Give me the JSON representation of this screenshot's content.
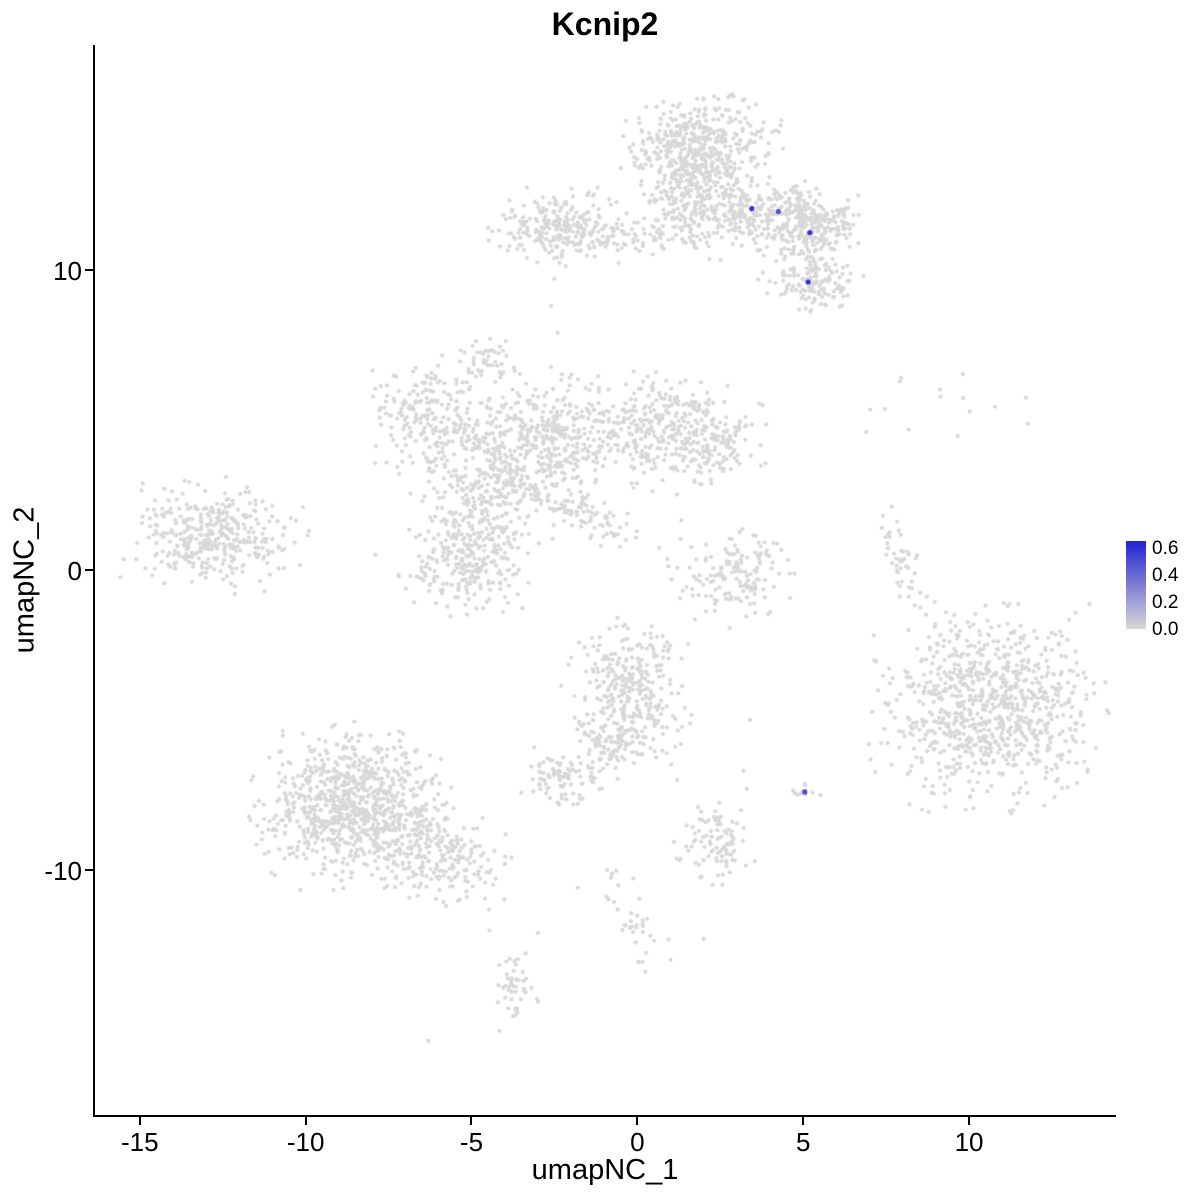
{
  "title": "Kcnip2",
  "chart_data": {
    "type": "scatter",
    "title": "Kcnip2",
    "xlabel": "umapNC_1",
    "ylabel": "umapNC_2",
    "x_ticks": [
      -15,
      -10,
      -5,
      0,
      5,
      10
    ],
    "y_ticks": [
      -10,
      0,
      10
    ],
    "x_range": [
      -16.35,
      14.4
    ],
    "y_range": [
      -18.17,
      17.5
    ],
    "grid": false,
    "point_color": "#D8D8D8",
    "highlight_color": "#2323D3",
    "legend": {
      "position": "right",
      "tick_labels": [
        "0.6",
        "0.4",
        "0.2",
        "0.0"
      ],
      "tick_values": [
        0.6,
        0.4,
        0.2,
        0.0
      ],
      "value_max": 0.65,
      "color_high": "#2323D3",
      "color_low": "#D8D8D8"
    },
    "clusters": [
      {
        "name": "top-head",
        "cx": 1.9,
        "cy": 14.1,
        "sx": 1.05,
        "sy": 0.8,
        "rot": 0,
        "n": 460
      },
      {
        "name": "top-neck",
        "cx": 1.5,
        "cy": 12.4,
        "sx": 0.6,
        "sy": 0.9,
        "rot": 8,
        "n": 190
      },
      {
        "name": "top-right-arm",
        "cx": 3.8,
        "cy": 11.8,
        "sx": 1.3,
        "sy": 0.6,
        "rot": -10,
        "n": 320
      },
      {
        "name": "top-right-dense",
        "cx": 5.3,
        "cy": 11.6,
        "sx": 0.6,
        "sy": 0.5,
        "rot": 0,
        "n": 160
      },
      {
        "name": "top-left-blob",
        "cx": -2.3,
        "cy": 11.4,
        "sx": 0.9,
        "sy": 0.55,
        "rot": 0,
        "n": 250
      },
      {
        "name": "top-left-strip",
        "cx": -0.4,
        "cy": 11.1,
        "sx": 1.0,
        "sy": 0.28,
        "rot": 0,
        "n": 70
      },
      {
        "name": "upper-right-small",
        "cx": 5.3,
        "cy": 9.6,
        "sx": 0.75,
        "sy": 0.5,
        "rot": -15,
        "n": 140
      },
      {
        "name": "mid-left-arm",
        "cx": -6.2,
        "cy": 5.1,
        "sx": 0.85,
        "sy": 0.85,
        "rot": 0,
        "n": 210
      },
      {
        "name": "mid-central",
        "cx": -4.4,
        "cy": 3.0,
        "sx": 1.0,
        "sy": 1.1,
        "rot": 15,
        "n": 330
      },
      {
        "name": "mid-core",
        "cx": -2.6,
        "cy": 4.4,
        "sx": 1.0,
        "sy": 0.95,
        "rot": 0,
        "n": 310
      },
      {
        "name": "mid-right-lobe",
        "cx": 0.7,
        "cy": 4.6,
        "sx": 1.35,
        "sy": 0.85,
        "rot": 0,
        "n": 340
      },
      {
        "name": "mid-right-tip",
        "cx": 2.3,
        "cy": 4.1,
        "sx": 0.6,
        "sy": 0.6,
        "rot": 0,
        "n": 90
      },
      {
        "name": "mid-streak",
        "cx": -1.6,
        "cy": 1.9,
        "sx": 1.1,
        "sy": 0.3,
        "rot": -28,
        "n": 90
      },
      {
        "name": "mid-top-knob",
        "cx": -4.6,
        "cy": 7.0,
        "sx": 0.35,
        "sy": 0.4,
        "rot": 0,
        "n": 45
      },
      {
        "name": "far-left",
        "cx": -12.8,
        "cy": 1.1,
        "sx": 1.15,
        "sy": 0.75,
        "rot": -8,
        "n": 380
      },
      {
        "name": "left-lower",
        "cx": -5.1,
        "cy": 0.4,
        "sx": 0.9,
        "sy": 0.8,
        "rot": 0,
        "n": 280
      },
      {
        "name": "center-crescent",
        "cx": 3.0,
        "cy": -0.2,
        "sx": 0.85,
        "sy": 0.8,
        "rot": 0,
        "n": 160
      },
      {
        "name": "right-sliver",
        "cx": 8.0,
        "cy": 0.2,
        "sx": 0.22,
        "sy": 0.85,
        "rot": 18,
        "n": 45
      },
      {
        "name": "upper-right-sparse",
        "cx": 8.6,
        "cy": 5.6,
        "sx": 1.4,
        "sy": 0.65,
        "rot": 0,
        "n": 14
      },
      {
        "name": "right-main",
        "cx": 10.6,
        "cy": -4.6,
        "sx": 1.45,
        "sy": 1.45,
        "rot": 0,
        "n": 860
      },
      {
        "name": "bottom-left-main",
        "cx": -8.6,
        "cy": -7.9,
        "sx": 1.25,
        "sy": 1.15,
        "rot": 0,
        "n": 820
      },
      {
        "name": "bottom-left-arm",
        "cx": -6.1,
        "cy": -9.4,
        "sx": 1.25,
        "sy": 0.7,
        "rot": -25,
        "n": 260
      },
      {
        "name": "center-lower",
        "cx": -0.3,
        "cy": -4.1,
        "sx": 0.8,
        "sy": 1.05,
        "rot": 0,
        "n": 330
      },
      {
        "name": "center-lower-tail",
        "cx": -0.9,
        "cy": -5.9,
        "sx": 0.45,
        "sy": 0.5,
        "rot": 0,
        "n": 60
      },
      {
        "name": "small-left-blob",
        "cx": -2.3,
        "cy": -6.9,
        "sx": 0.55,
        "sy": 0.45,
        "rot": 0,
        "n": 90
      },
      {
        "name": "small-bottom",
        "cx": 2.4,
        "cy": -9.1,
        "sx": 0.55,
        "sy": 0.6,
        "rot": 0,
        "n": 95
      },
      {
        "name": "bottom-trail",
        "cx": 0.0,
        "cy": -11.6,
        "sx": 0.35,
        "sy": 0.85,
        "rot": 12,
        "n": 35
      },
      {
        "name": "bottom-small-blob",
        "cx": -3.7,
        "cy": -13.9,
        "sx": 0.3,
        "sy": 0.6,
        "rot": 0,
        "n": 45
      },
      {
        "name": "tiny-right-dot-blob",
        "cx": 5.05,
        "cy": -7.4,
        "sx": 0.2,
        "sy": 0.16,
        "rot": 0,
        "n": 12
      }
    ],
    "extra_points": [
      [
        -6.3,
        -15.7
      ],
      [
        3.4,
        -5.0
      ],
      [
        3.2,
        -6.7
      ],
      [
        3.3,
        -7.3
      ],
      [
        -2.6,
        8.8
      ],
      [
        -2.4,
        7.9
      ],
      [
        -2.5,
        9.7
      ],
      [
        -0.6,
        -1.6
      ],
      [
        -0.3,
        -2.3
      ],
      [
        4.0,
        -1.4
      ],
      [
        -4.0,
        -9.8
      ],
      [
        -1.8,
        -10.6
      ],
      [
        1.2,
        -7.0
      ],
      [
        6.9,
        4.6
      ],
      [
        -12.4,
        3.1
      ],
      [
        2.0,
        -12.3
      ],
      [
        1.0,
        -13.0
      ],
      [
        -3.0,
        -12.1
      ],
      [
        -9.9,
        1.3
      ],
      [
        -7.9,
        0.5
      ]
    ],
    "highlighted_points": [
      {
        "x": 3.45,
        "y": 12.05,
        "value": 0.6
      },
      {
        "x": 4.25,
        "y": 11.95,
        "value": 0.5
      },
      {
        "x": 5.2,
        "y": 11.25,
        "value": 0.6
      },
      {
        "x": 5.15,
        "y": 9.6,
        "value": 0.6
      },
      {
        "x": 5.05,
        "y": -7.4,
        "value": 0.5
      }
    ]
  }
}
